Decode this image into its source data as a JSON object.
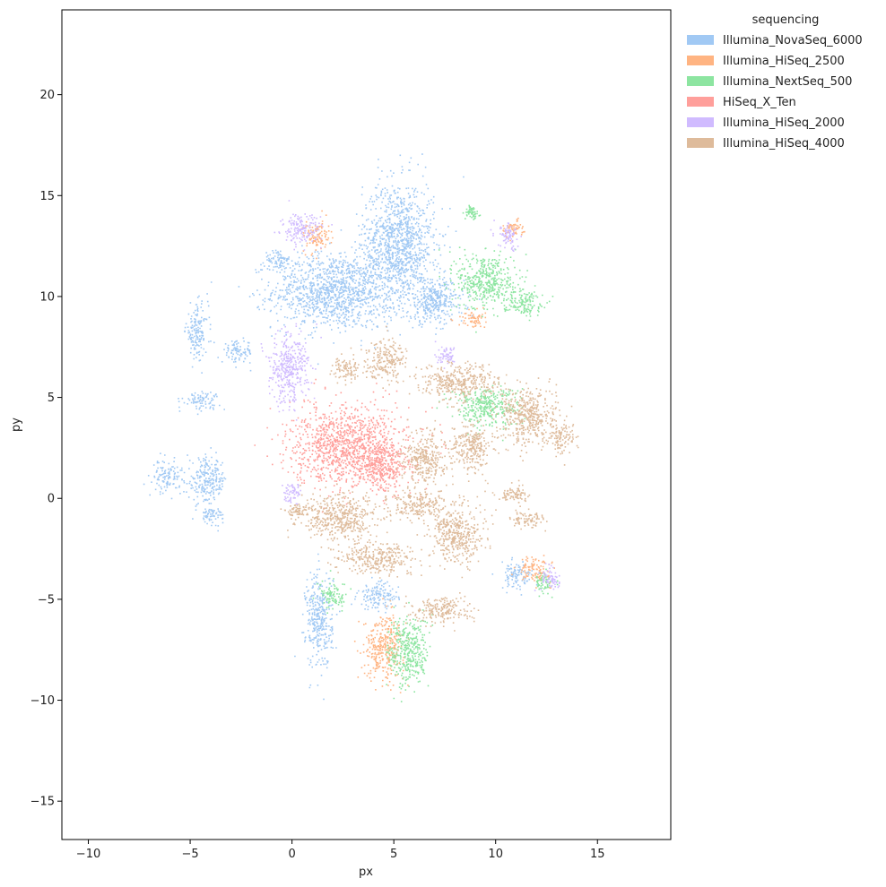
{
  "chart_data": {
    "type": "scatter",
    "xlabel": "px",
    "ylabel": "py",
    "xlim": [
      -11.3,
      18.6
    ],
    "ylim": [
      -16.9,
      24.2
    ],
    "xticks": [
      -10,
      -5,
      0,
      5,
      10,
      15
    ],
    "yticks": [
      -15,
      -10,
      -5,
      0,
      5,
      10,
      15,
      20
    ],
    "grid": false,
    "legend": {
      "title": "sequencing",
      "placement": "outside-top-right",
      "entries": [
        {
          "name": "Illumina_NovaSeq_6000",
          "color": "#a1c9f4"
        },
        {
          "name": "Illumina_HiSeq_2500",
          "color": "#ffb482"
        },
        {
          "name": "Illumina_NextSeq_500",
          "color": "#8de5a1"
        },
        {
          "name": "HiSeq_X_Ten",
          "color": "#ff9f9b"
        },
        {
          "name": "Illumina_HiSeq_2000",
          "color": "#d0bbff"
        },
        {
          "name": "Illumina_HiSeq_4000",
          "color": "#debb9b"
        }
      ]
    },
    "series": [
      {
        "name": "Illumina_NovaSeq_6000",
        "color": "#a1c9f4",
        "clusters": [
          {
            "cx": 2.0,
            "cy": 10.3,
            "rx": 2.7,
            "ry": 1.7
          },
          {
            "cx": 5.2,
            "cy": 12.6,
            "rx": 1.6,
            "ry": 2.8
          },
          {
            "cx": 7.0,
            "cy": 9.8,
            "rx": 1.3,
            "ry": 1.0
          },
          {
            "cx": -4.7,
            "cy": 8.3,
            "rx": 0.5,
            "ry": 1.2
          },
          {
            "cx": -2.7,
            "cy": 7.3,
            "rx": 0.7,
            "ry": 0.5
          },
          {
            "cx": -4.2,
            "cy": 0.9,
            "rx": 0.9,
            "ry": 1.0
          },
          {
            "cx": -6.2,
            "cy": 1.1,
            "rx": 0.6,
            "ry": 0.7
          },
          {
            "cx": -4.0,
            "cy": -0.8,
            "rx": 0.6,
            "ry": 0.4
          },
          {
            "cx": -4.5,
            "cy": 4.9,
            "rx": 0.8,
            "ry": 0.4
          },
          {
            "cx": 1.3,
            "cy": -6.0,
            "rx": 0.6,
            "ry": 2.2
          },
          {
            "cx": 4.2,
            "cy": -4.8,
            "rx": 0.9,
            "ry": 0.6
          },
          {
            "cx": 11.0,
            "cy": -3.8,
            "rx": 0.7,
            "ry": 0.6
          },
          {
            "cx": -0.7,
            "cy": 11.8,
            "rx": 0.6,
            "ry": 0.5
          }
        ]
      },
      {
        "name": "Illumina_HiSeq_2500",
        "color": "#ffb482",
        "clusters": [
          {
            "cx": 4.5,
            "cy": -7.3,
            "rx": 0.9,
            "ry": 1.4
          },
          {
            "cx": 11.9,
            "cy": -3.5,
            "rx": 0.7,
            "ry": 0.6
          },
          {
            "cx": 10.8,
            "cy": 13.4,
            "rx": 0.5,
            "ry": 0.4
          },
          {
            "cx": 1.2,
            "cy": 13.0,
            "rx": 0.6,
            "ry": 0.7
          },
          {
            "cx": 8.8,
            "cy": 8.9,
            "rx": 0.6,
            "ry": 0.4
          }
        ]
      },
      {
        "name": "Illumina_NextSeq_500",
        "color": "#8de5a1",
        "clusters": [
          {
            "cx": 9.5,
            "cy": 10.8,
            "rx": 1.3,
            "ry": 1.3
          },
          {
            "cx": 11.3,
            "cy": 9.8,
            "rx": 0.9,
            "ry": 0.6
          },
          {
            "cx": 9.5,
            "cy": 4.6,
            "rx": 1.5,
            "ry": 0.9
          },
          {
            "cx": 5.7,
            "cy": -7.6,
            "rx": 0.9,
            "ry": 1.6
          },
          {
            "cx": 2.0,
            "cy": -4.8,
            "rx": 0.6,
            "ry": 0.6
          },
          {
            "cx": 12.3,
            "cy": -4.2,
            "rx": 0.4,
            "ry": 0.5
          },
          {
            "cx": 8.8,
            "cy": 14.2,
            "rx": 0.3,
            "ry": 0.3
          }
        ]
      },
      {
        "name": "HiSeq_X_Ten",
        "color": "#ff9f9b",
        "clusters": [
          {
            "cx": 2.8,
            "cy": 2.6,
            "rx": 2.6,
            "ry": 1.8
          },
          {
            "cx": 4.5,
            "cy": 1.5,
            "rx": 0.9,
            "ry": 1.0
          }
        ]
      },
      {
        "name": "Illumina_HiSeq_2000",
        "color": "#d0bbff",
        "clusters": [
          {
            "cx": -0.2,
            "cy": 6.5,
            "rx": 0.9,
            "ry": 1.6
          },
          {
            "cx": 0.4,
            "cy": 13.3,
            "rx": 0.9,
            "ry": 0.7
          },
          {
            "cx": 10.6,
            "cy": 13.0,
            "rx": 0.5,
            "ry": 0.6
          },
          {
            "cx": 7.6,
            "cy": 7.1,
            "rx": 0.5,
            "ry": 0.4
          },
          {
            "cx": 12.7,
            "cy": -4.0,
            "rx": 0.5,
            "ry": 0.5
          },
          {
            "cx": 0.0,
            "cy": 0.2,
            "rx": 0.4,
            "ry": 0.5
          }
        ]
      },
      {
        "name": "Illumina_HiSeq_4000",
        "color": "#debb9b",
        "clusters": [
          {
            "cx": 4.6,
            "cy": 7.0,
            "rx": 0.9,
            "ry": 0.9
          },
          {
            "cx": 2.6,
            "cy": 6.4,
            "rx": 0.6,
            "ry": 0.6
          },
          {
            "cx": 8.2,
            "cy": 5.8,
            "rx": 1.8,
            "ry": 0.8
          },
          {
            "cx": 11.6,
            "cy": 4.1,
            "rx": 1.3,
            "ry": 1.3
          },
          {
            "cx": 6.5,
            "cy": 2.0,
            "rx": 1.0,
            "ry": 1.2
          },
          {
            "cx": 8.8,
            "cy": 2.6,
            "rx": 0.9,
            "ry": 1.1
          },
          {
            "cx": 13.2,
            "cy": 3.0,
            "rx": 0.6,
            "ry": 0.7
          },
          {
            "cx": 2.3,
            "cy": -0.9,
            "rx": 1.8,
            "ry": 1.0
          },
          {
            "cx": 6.2,
            "cy": -0.3,
            "rx": 1.3,
            "ry": 0.6
          },
          {
            "cx": 8.0,
            "cy": -1.8,
            "rx": 1.2,
            "ry": 1.3
          },
          {
            "cx": 4.2,
            "cy": -2.9,
            "rx": 1.7,
            "ry": 0.7
          },
          {
            "cx": 7.4,
            "cy": -5.5,
            "rx": 1.3,
            "ry": 0.6
          },
          {
            "cx": 10.8,
            "cy": 0.2,
            "rx": 0.8,
            "ry": 0.4
          },
          {
            "cx": 11.5,
            "cy": -1.0,
            "rx": 0.8,
            "ry": 0.4
          },
          {
            "cx": 0.3,
            "cy": -0.6,
            "rx": 0.6,
            "ry": 0.3
          }
        ]
      }
    ]
  }
}
